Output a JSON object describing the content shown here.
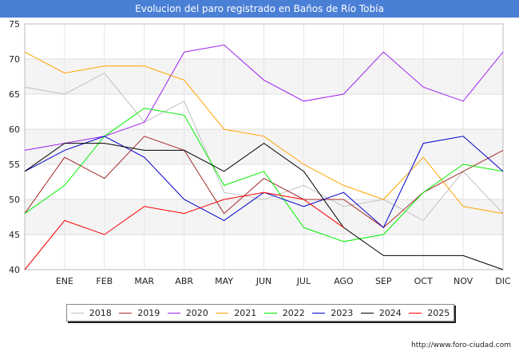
{
  "header": {
    "title": "Evolucion del paro registrado en Baños de Río Tobía"
  },
  "footer": {
    "url": "http://www.foro-ciudad.com"
  },
  "chart_data": {
    "type": "line",
    "title": "Evolucion del paro registrado en Baños de Río Tobía",
    "categories": [
      "",
      "ENE",
      "FEB",
      "MAR",
      "ABR",
      "MAY",
      "JUN",
      "JUL",
      "AGO",
      "SEP",
      "OCT",
      "NOV",
      "DIC"
    ],
    "ylim": [
      40,
      75
    ],
    "yticks": [
      40,
      45,
      50,
      55,
      60,
      65,
      70,
      75
    ],
    "grid": true,
    "legend_position": "bottom",
    "series": [
      {
        "name": "2018",
        "color": "#c0c0c0",
        "values": [
          66,
          65,
          68,
          61,
          64,
          51,
          50,
          52,
          49,
          50,
          47,
          54,
          48
        ]
      },
      {
        "name": "2019",
        "color": "#a52a2a",
        "values": [
          48,
          56,
          53,
          59,
          57,
          48,
          53,
          50,
          50,
          46,
          51,
          54,
          57
        ]
      },
      {
        "name": "2020",
        "color": "#a020f0",
        "values": [
          57,
          58,
          59,
          61,
          71,
          72,
          67,
          64,
          65,
          71,
          66,
          64,
          71
        ]
      },
      {
        "name": "2021",
        "color": "#ffa500",
        "values": [
          71,
          68,
          69,
          69,
          67,
          60,
          59,
          55,
          52,
          50,
          56,
          49,
          48
        ]
      },
      {
        "name": "2022",
        "color": "#00ee00",
        "values": [
          48,
          52,
          59,
          63,
          62,
          52,
          54,
          46,
          44,
          45,
          51,
          55,
          54
        ]
      },
      {
        "name": "2023",
        "color": "#0000cd",
        "values": [
          54,
          57,
          59,
          56,
          50,
          47,
          51,
          49,
          51,
          46,
          58,
          59,
          54
        ]
      },
      {
        "name": "2024",
        "color": "#000000",
        "values": [
          54,
          58,
          58,
          57,
          57,
          54,
          58,
          54,
          46,
          42,
          42,
          42,
          40
        ]
      },
      {
        "name": "2025",
        "color": "#ff0000",
        "values": [
          40,
          47,
          45,
          49,
          48,
          50,
          51,
          50,
          46,
          null,
          null,
          null,
          null
        ]
      }
    ]
  }
}
